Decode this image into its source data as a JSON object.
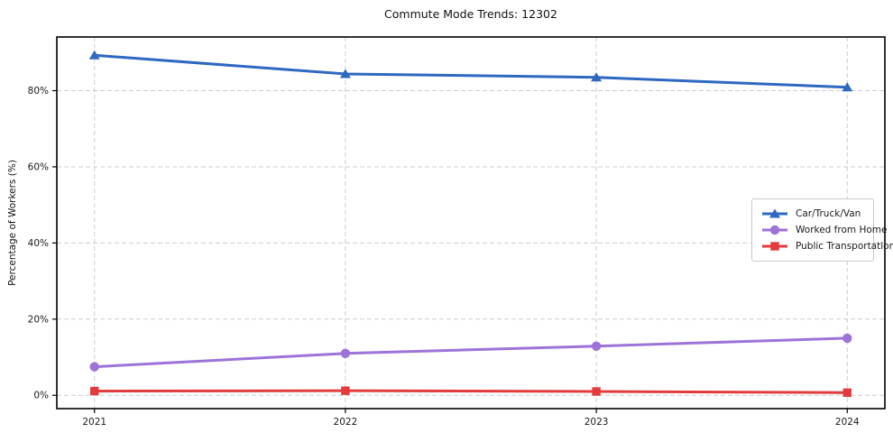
{
  "chart_data": {
    "type": "line",
    "title": "Commute Mode Trends: 12302",
    "xlabel": "",
    "ylabel": "Percentage of Workers (%)",
    "x": [
      2021,
      2022,
      2023,
      2024
    ],
    "x_tick_labels": [
      "2021",
      "2022",
      "2023",
      "2024"
    ],
    "y_ticks": [
      0,
      20,
      40,
      60,
      80
    ],
    "y_tick_suffix": "%",
    "xlim": [
      2020.85,
      2024.15
    ],
    "ylim": [
      -3.5,
      94.1
    ],
    "grid": true,
    "grid_style": "dashed",
    "legend_position": "center-right",
    "series": [
      {
        "name": "Car/Truck/Van",
        "marker": "triangle",
        "color": "#2e68c0",
        "values": [
          89.3,
          84.4,
          83.5,
          80.9
        ]
      },
      {
        "name": "Worked from Home",
        "marker": "circle",
        "color": "#9d73d8",
        "values": [
          7.5,
          11.0,
          12.9,
          15.0
        ]
      },
      {
        "name": "Public Transportation",
        "marker": "square",
        "color": "#e23b3d",
        "values": [
          1.1,
          1.2,
          1.0,
          0.7
        ]
      }
    ]
  },
  "style_colors": {
    "grid": "#cccccc",
    "spine": "#000000",
    "tick_text": "#1a1a1a"
  }
}
